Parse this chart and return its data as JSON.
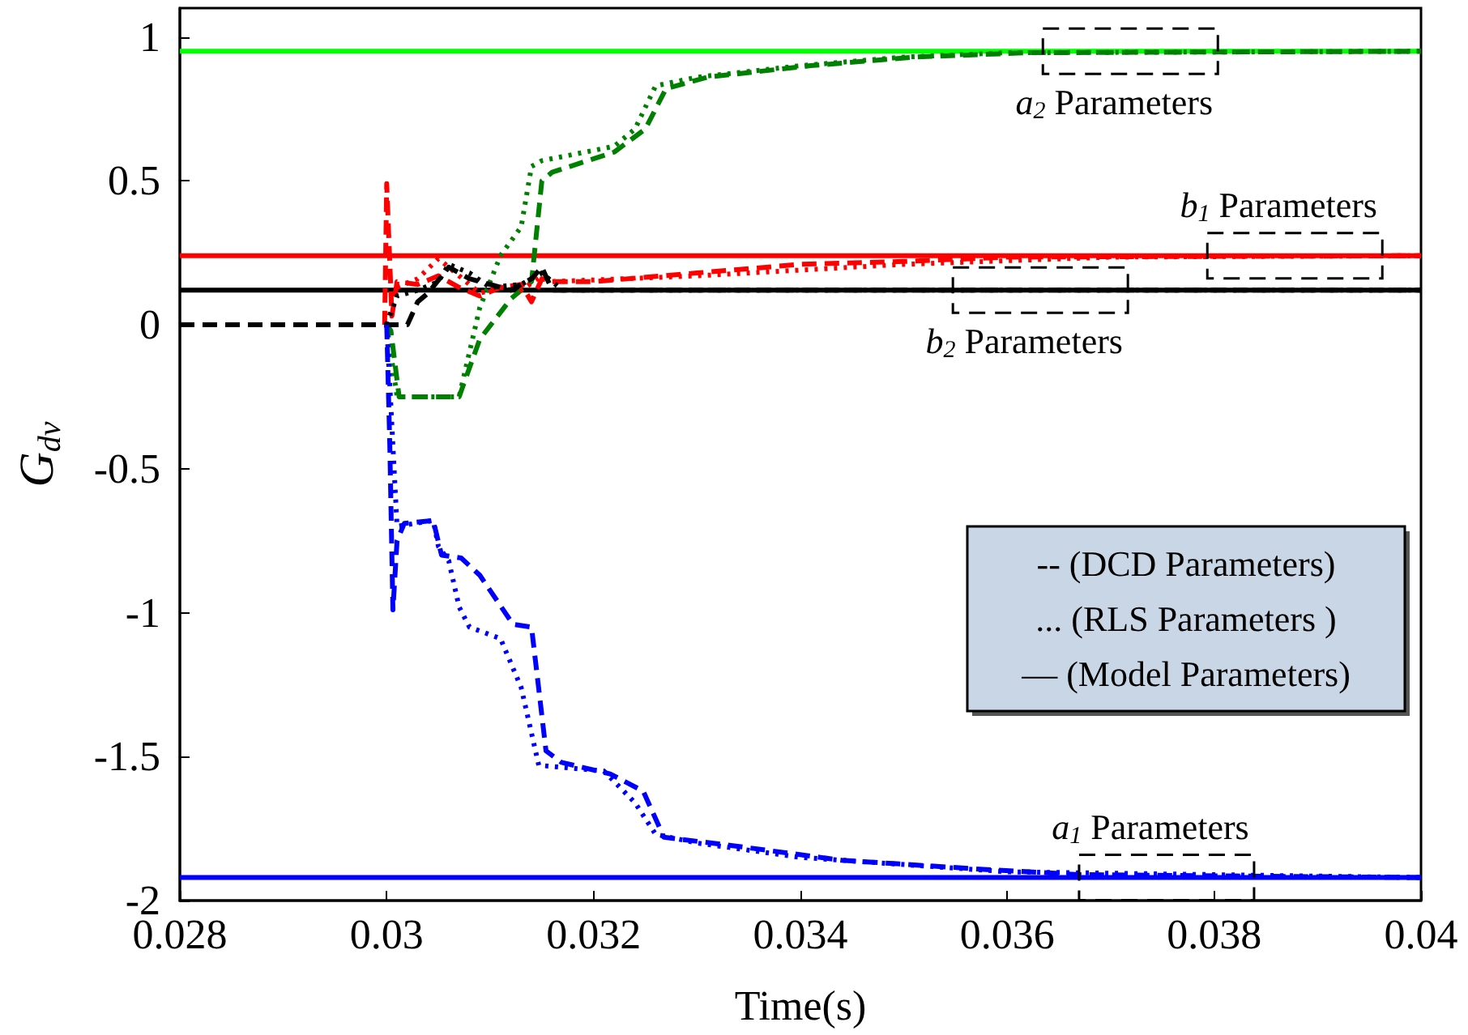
{
  "chart_data": {
    "type": "line",
    "xlabel": "Time(s)",
    "ylabel": "G$_{dv}$",
    "xlim": [
      0.028,
      0.04
    ],
    "xticks": [
      0.028,
      0.03,
      0.032,
      0.034,
      0.036,
      0.038,
      0.04
    ],
    "ylim": [
      -2,
      1.1
    ],
    "yticks": [
      -2,
      -1.5,
      -1,
      -0.5,
      0,
      0.5,
      1
    ],
    "marker": "none",
    "grid": false,
    "series": [
      {
        "color": "#00ff00",
        "line_style": "solid",
        "x": [
          0.028,
          0.04
        ],
        "values": [
          0.95,
          0.95
        ]
      },
      {
        "color": "#ff0000",
        "line_style": "solid",
        "x": [
          0.028,
          0.04
        ],
        "values": [
          0.24,
          0.24
        ]
      },
      {
        "color": "#000000",
        "line_style": "solid",
        "x": [
          0.028,
          0.04
        ],
        "values": [
          0.12,
          0.12
        ]
      },
      {
        "color": "#0000ff",
        "line_style": "solid",
        "x": [
          0.028,
          0.04
        ],
        "values": [
          -1.92,
          -1.92
        ]
      },
      {
        "color": "#008000",
        "line_style": "dashed",
        "x": [
          0.028,
          0.03,
          0.03004,
          0.03012,
          0.0307,
          0.0309,
          0.0312,
          0.0314,
          0.0315,
          0.0316,
          0.0322,
          0.0325,
          0.0327,
          0.0331,
          0.0341,
          0.0351,
          0.0362,
          0.04
        ],
        "values": [
          0,
          0,
          -0.02,
          -0.25,
          -0.25,
          -0.05,
          0.09,
          0.15,
          0.5,
          0.53,
          0.6,
          0.68,
          0.82,
          0.86,
          0.9,
          0.93,
          0.945,
          0.95
        ]
      },
      {
        "color": "#008000",
        "line_style": "dotted",
        "x": [
          0.03,
          0.0301,
          0.0307,
          0.0309,
          0.0311,
          0.0313,
          0.0314,
          0.0315,
          0.0322,
          0.0324,
          0.0326,
          0.033,
          0.034,
          0.035,
          0.036,
          0.04
        ],
        "values": [
          0,
          -0.25,
          -0.25,
          0.06,
          0.24,
          0.34,
          0.55,
          0.57,
          0.62,
          0.68,
          0.83,
          0.86,
          0.9,
          0.93,
          0.945,
          0.95
        ]
      },
      {
        "color": "#ff0000",
        "line_style": "dashed",
        "x": [
          0.028,
          0.02998,
          0.03,
          0.03005,
          0.0301,
          0.0303,
          0.0305,
          0.0307,
          0.0309,
          0.0311,
          0.0313,
          0.0314,
          0.0315,
          0.0316,
          0.032,
          0.033,
          0.034,
          0.035,
          0.036,
          0.04
        ],
        "values": [
          0,
          0,
          0.49,
          0.03,
          0.15,
          0.14,
          0.17,
          0.13,
          0.1,
          0.13,
          0.14,
          0.08,
          0.16,
          0.15,
          0.15,
          0.18,
          0.21,
          0.22,
          0.235,
          0.24
        ]
      },
      {
        "color": "#ff0000",
        "line_style": "dotted",
        "x": [
          0.03,
          0.0301,
          0.0303,
          0.0305,
          0.0307,
          0.0309,
          0.0311,
          0.0313,
          0.0315,
          0.0316,
          0.033,
          0.035,
          0.037,
          0.04
        ],
        "values": [
          0,
          0.13,
          0.16,
          0.23,
          0.17,
          0.11,
          0.13,
          0.12,
          0.17,
          0.15,
          0.17,
          0.21,
          0.235,
          0.24
        ]
      },
      {
        "color": "#000000",
        "line_style": "dashed",
        "x": [
          0.028,
          0.0302,
          0.0303,
          0.0304,
          0.0306,
          0.0308,
          0.031,
          0.0312,
          0.0314,
          0.0315,
          0.0316,
          0.034,
          0.04
        ],
        "values": [
          0,
          0,
          0.08,
          0.11,
          0.2,
          0.16,
          0.14,
          0.12,
          0.16,
          0.2,
          0.12,
          0.12,
          0.12
        ]
      },
      {
        "color": "#000000",
        "line_style": "dotted",
        "x": [
          0.03,
          0.0301,
          0.0303,
          0.0305,
          0.0306,
          0.0308,
          0.031,
          0.0313,
          0.0315,
          0.0317,
          0.04
        ],
        "values": [
          0,
          0.1,
          0.12,
          0.15,
          0.21,
          0.18,
          0.13,
          0.14,
          0.18,
          0.12,
          0.12
        ]
      },
      {
        "color": "#0000ff",
        "line_style": "dashed",
        "x": [
          0.03,
          0.03003,
          0.03006,
          0.0301,
          0.03017,
          0.03045,
          0.03053,
          0.03072,
          0.0309,
          0.03107,
          0.03122,
          0.0314,
          0.03154,
          0.03169,
          0.03216,
          0.03248,
          0.03268,
          0.03336,
          0.0344,
          0.0357,
          0.0367,
          0.04
        ],
        "values": [
          0,
          -0.42,
          -0.99,
          -0.75,
          -0.69,
          -0.68,
          -0.8,
          -0.81,
          -0.87,
          -0.96,
          -1.04,
          -1.05,
          -1.48,
          -1.52,
          -1.56,
          -1.62,
          -1.78,
          -1.81,
          -1.86,
          -1.89,
          -1.91,
          -1.92
        ]
      },
      {
        "color": "#0000ff",
        "line_style": "dotted",
        "x": [
          0.03,
          0.0301,
          0.03045,
          0.0305,
          0.0306,
          0.0307,
          0.0308,
          0.0311,
          0.0313,
          0.03147,
          0.0321,
          0.0324,
          0.0326,
          0.033,
          0.034,
          0.036,
          0.04
        ],
        "values": [
          0,
          -0.7,
          -0.68,
          -0.77,
          -0.82,
          -0.98,
          -1.05,
          -1.09,
          -1.26,
          -1.53,
          -1.55,
          -1.66,
          -1.77,
          -1.8,
          -1.85,
          -1.9,
          -1.92
        ]
      }
    ],
    "annotations": [
      {
        "text": "a$_{2}$ Parameters",
        "x": 0.03719,
        "y": 0.95
      },
      {
        "text": "b$_{1}$ Parameters",
        "x": 0.03878,
        "y": 0.24
      },
      {
        "text": "b$_{2}$ Parameters",
        "x": 0.03632,
        "y": 0.12
      },
      {
        "text": "a$_{1}$ Parameters",
        "x": 0.03754,
        "y": -1.92
      },
      "-- (DCD Parameters)",
      "... (RLS Parameters )",
      "— (Model Parameters)"
    ]
  }
}
